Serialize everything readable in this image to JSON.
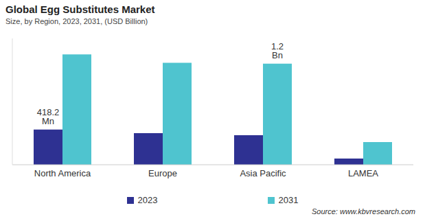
{
  "chart_data": {
    "type": "bar",
    "title": "Global Egg Substitutes Market",
    "subtitle": "Size, by Region, 2023, 2031, (USD Billion)",
    "categories": [
      "North America",
      "Europe",
      "Asia Pacific",
      "LAMEA"
    ],
    "series": [
      {
        "name": "2023",
        "color": "#2e3192",
        "values": [
          0.4182,
          0.375,
          0.35,
          0.073
        ],
        "value_labels": [
          "418.2 Mn",
          null,
          null,
          null
        ]
      },
      {
        "name": "2031",
        "color": "#4fc4cf",
        "values": [
          1.31,
          1.21,
          1.2,
          0.27
        ],
        "value_labels": [
          null,
          null,
          "1.2 Bn",
          null
        ]
      }
    ],
    "ylim": [
      0,
      1.5
    ],
    "tick_labels": "x",
    "grid": false,
    "legend": "bottom",
    "data_labels": true,
    "source": "Source: www.kbvresearch.com"
  }
}
